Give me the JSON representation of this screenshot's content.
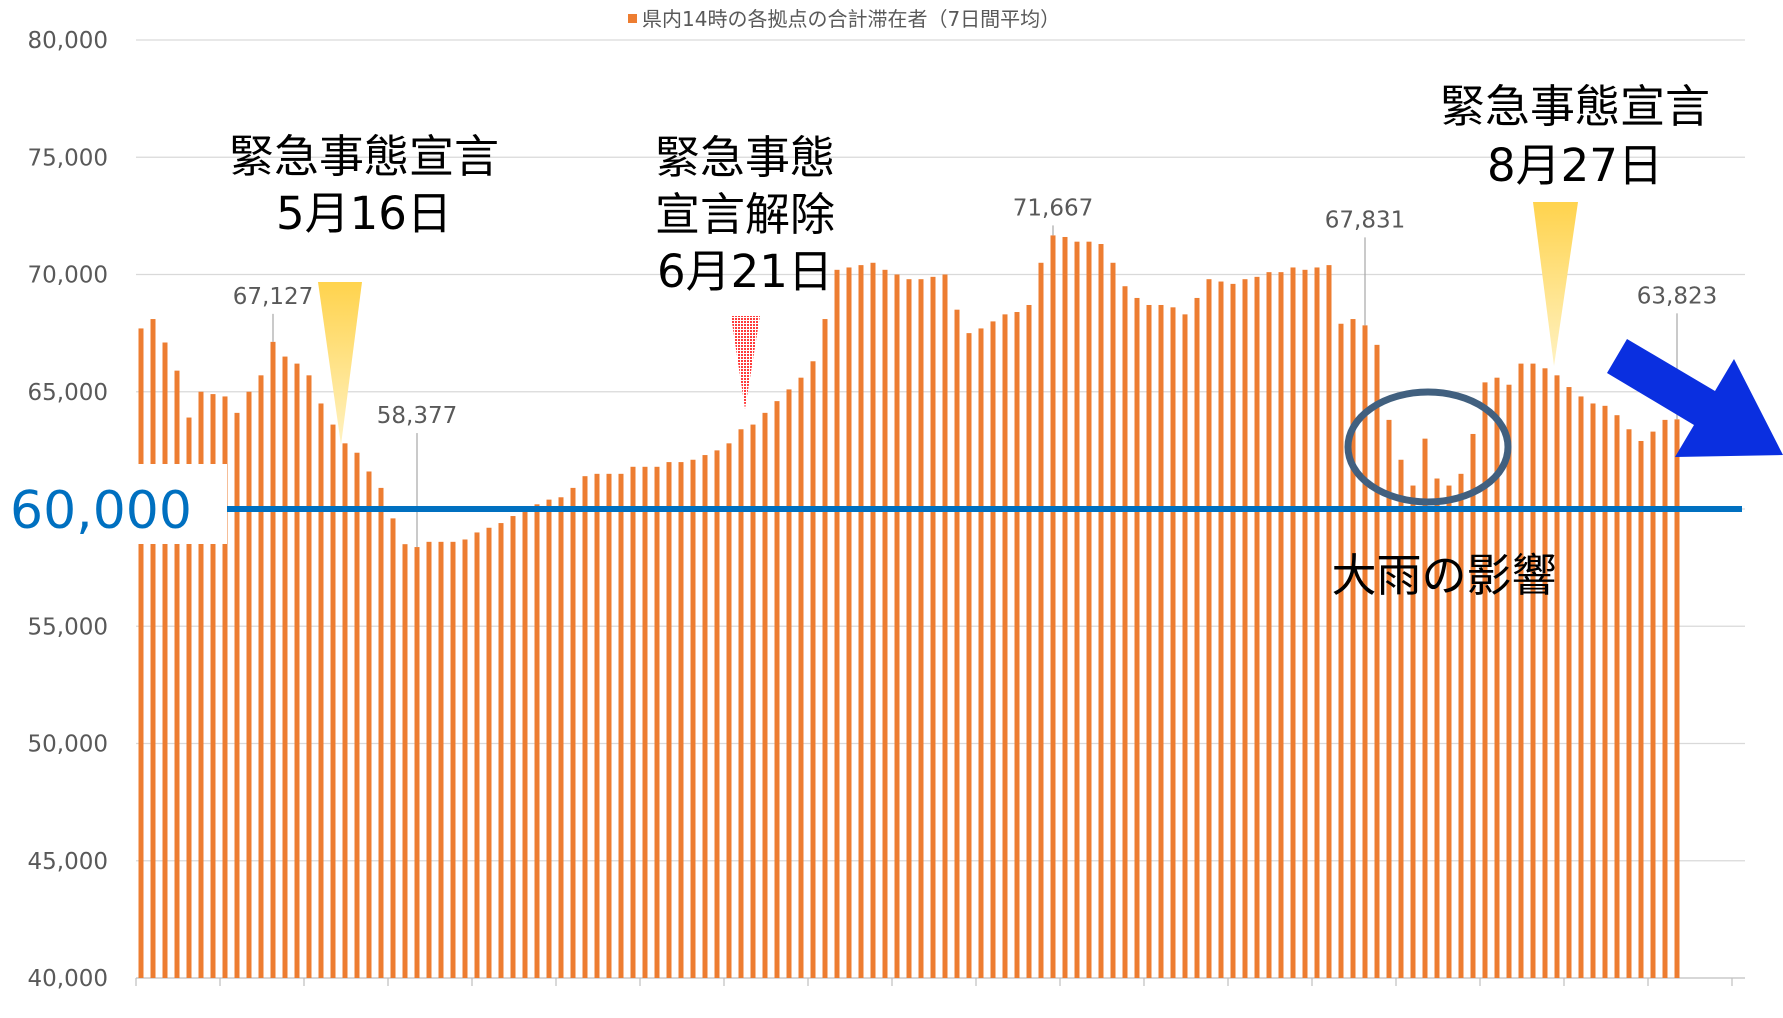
{
  "chart_data": {
    "type": "bar",
    "series": [
      {
        "name": "県内14時の各拠点の合計滞在者（7日間平均）",
        "color": "#ed7d31",
        "values": [
          67700,
          68100,
          67100,
          65900,
          63900,
          65000,
          64900,
          64800,
          64100,
          65000,
          65700,
          67127,
          66500,
          66200,
          65700,
          64500,
          63600,
          62800,
          62400,
          61600,
          60900,
          59600,
          58500,
          58377,
          58600,
          58600,
          58600,
          58700,
          59000,
          59200,
          59400,
          59700,
          60000,
          60200,
          60400,
          60500,
          60900,
          61400,
          61500,
          61500,
          61500,
          61800,
          61800,
          61800,
          62000,
          62000,
          62100,
          62300,
          62500,
          62800,
          63400,
          63600,
          64100,
          64600,
          65100,
          65600,
          66300,
          68100,
          70200,
          70300,
          70400,
          70500,
          70200,
          70000,
          69800,
          69800,
          69900,
          70000,
          68500,
          67500,
          67700,
          68000,
          68300,
          68400,
          68700,
          70500,
          71667,
          71600,
          71400,
          71400,
          71300,
          70500,
          69500,
          69000,
          68700,
          68700,
          68600,
          68300,
          69000,
          69800,
          69700,
          69600,
          69800,
          69900,
          70100,
          70100,
          70300,
          70200,
          70300,
          70400,
          67900,
          68100,
          67831,
          67000,
          63800,
          62100,
          61000,
          63000,
          61300,
          61000,
          61500,
          63200,
          65400,
          65600,
          65300,
          66200,
          66200,
          66000,
          65700,
          65200,
          64800,
          64500,
          64400,
          64000,
          63400,
          62900,
          63300,
          63800,
          63823
        ],
        "value_labels": [
          null,
          null,
          null,
          null,
          null,
          null,
          null,
          null,
          null,
          null,
          null,
          "67,127",
          null,
          null,
          null,
          null,
          null,
          null,
          null,
          null,
          null,
          null,
          null,
          "58,377",
          null,
          null,
          null,
          null,
          null,
          null,
          null,
          null,
          null,
          null,
          null,
          null,
          null,
          null,
          null,
          null,
          null,
          null,
          null,
          null,
          null,
          null,
          null,
          null,
          null,
          null,
          null,
          null,
          null,
          null,
          null,
          null,
          null,
          null,
          null,
          null,
          null,
          null,
          null,
          null,
          null,
          null,
          null,
          null,
          null,
          null,
          null,
          null,
          null,
          null,
          null,
          null,
          "71,667",
          null,
          null,
          null,
          null,
          null,
          null,
          null,
          null,
          null,
          null,
          null,
          null,
          null,
          null,
          null,
          null,
          null,
          null,
          null,
          null,
          null,
          null,
          null,
          null,
          null,
          "67,831",
          null,
          null,
          null,
          null,
          null,
          null,
          null,
          null,
          null,
          null,
          null,
          null,
          null,
          null,
          null,
          null,
          null,
          null,
          null,
          null,
          null,
          null,
          null,
          null,
          null,
          "63,823"
        ]
      }
    ],
    "ylim": [
      40000,
      80000
    ],
    "yticks": [
      {
        "value": 40000,
        "label": "40,000"
      },
      {
        "value": 45000,
        "label": "45,000"
      },
      {
        "value": 50000,
        "label": "50,000"
      },
      {
        "value": 55000,
        "label": "55,000"
      },
      {
        "value": 60000,
        "label": "60,000"
      },
      {
        "value": 65000,
        "label": "65,000"
      },
      {
        "value": 70000,
        "label": "70,000"
      },
      {
        "value": 75000,
        "label": "75,000"
      },
      {
        "value": 80000,
        "label": "80,000"
      }
    ],
    "grid": true,
    "legend": "top",
    "reference_line": {
      "value": 60000,
      "label": "60,000",
      "color": "#0070c0"
    },
    "annotations": [
      {
        "lines": [
          "緊急事態宣言",
          "5月16日"
        ]
      },
      {
        "lines": [
          "緊急事態",
          "宣言解除",
          "6月21日"
        ]
      },
      {
        "lines": [
          "緊急事態宣言",
          "8月27日"
        ]
      },
      {
        "lines": [
          "大雨の影響"
        ]
      }
    ]
  }
}
